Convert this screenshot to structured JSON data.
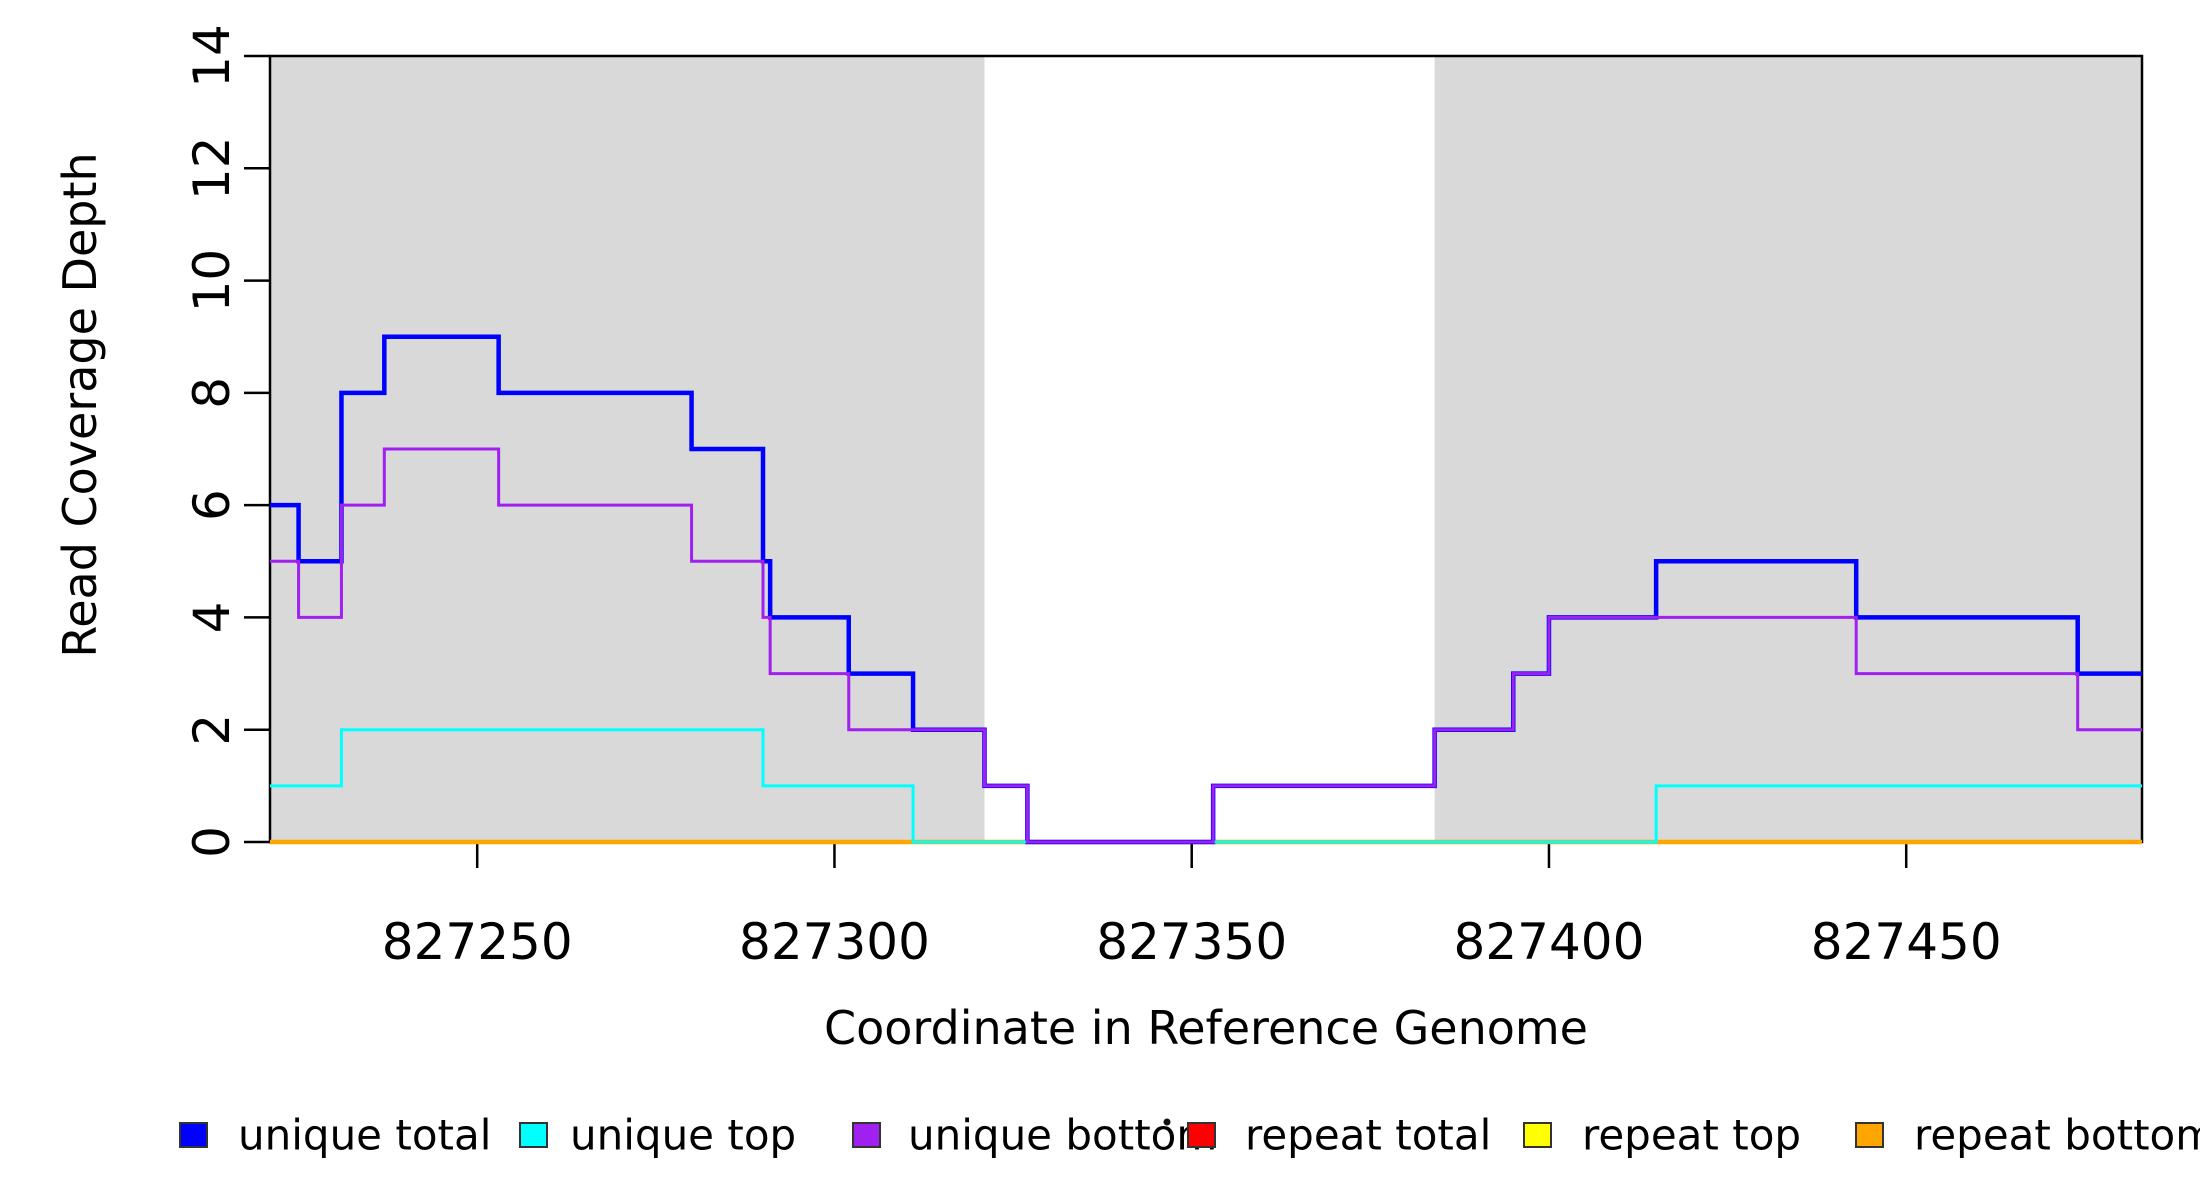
{
  "y_axis": {
    "label": "Read Coverage Depth",
    "ticks": [
      0,
      2,
      4,
      6,
      8,
      10,
      12,
      14
    ]
  },
  "x_axis": {
    "label": "Coordinate in Reference Genome",
    "ticks": [
      827250,
      827300,
      827350,
      827400,
      827450
    ]
  },
  "legend": {
    "items": [
      {
        "label": "unique total",
        "color": "#0000FF"
      },
      {
        "label": "unique top",
        "color": "#00FFFF"
      },
      {
        "label": "unique bottom",
        "color": "#A020F0"
      },
      {
        "label": "repeat total",
        "color": "#FF0000"
      },
      {
        "label": "repeat top",
        "color": "#FFFF00"
      },
      {
        "label": "repeat bottom",
        "color": "#FFA500"
      }
    ],
    "swatch_border_color": "#333333"
  },
  "chart_data": {
    "type": "line",
    "subtype": "step-coverage",
    "title": "",
    "xlabel": "Coordinate in Reference Genome",
    "ylabel": "Read Coverage Depth",
    "xlim": [
      827221,
      827483
    ],
    "ylim": [
      0,
      14
    ],
    "x_ticks": [
      827250,
      827300,
      827350,
      827400,
      827450
    ],
    "y_ticks": [
      0,
      2,
      4,
      6,
      8,
      10,
      12,
      14
    ],
    "grid": false,
    "legend_position": "bottom",
    "shaded_regions": {
      "meaning": "repeat-region-shading",
      "color": "#D9D9D9",
      "ranges": [
        [
          827221,
          827321
        ],
        [
          827384,
          827483
        ]
      ]
    },
    "x_end": 827483,
    "series": [
      {
        "name": "unique total",
        "color": "#0000FF",
        "width": 4.5,
        "breakpoints": [
          [
            827221,
            6
          ],
          [
            827225,
            5
          ],
          [
            827231,
            8
          ],
          [
            827237,
            9
          ],
          [
            827253,
            8
          ],
          [
            827280,
            7
          ],
          [
            827290,
            5
          ],
          [
            827291,
            4
          ],
          [
            827302,
            3
          ],
          [
            827311,
            2
          ],
          [
            827321,
            1
          ],
          [
            827327,
            0
          ],
          [
            827353,
            1
          ],
          [
            827384,
            2
          ],
          [
            827395,
            3
          ],
          [
            827400,
            4
          ],
          [
            827415,
            5
          ],
          [
            827443,
            4
          ],
          [
            827474,
            3
          ]
        ]
      },
      {
        "name": "unique top",
        "color": "#00FFFF",
        "width": 3,
        "breakpoints": [
          [
            827221,
            1
          ],
          [
            827231,
            2
          ],
          [
            827290,
            1
          ],
          [
            827311,
            0
          ],
          [
            827415,
            1
          ]
        ]
      },
      {
        "name": "unique bottom",
        "color": "#A020F0",
        "width": 3,
        "breakpoints": [
          [
            827221,
            5
          ],
          [
            827225,
            4
          ],
          [
            827231,
            6
          ],
          [
            827237,
            7
          ],
          [
            827253,
            6
          ],
          [
            827280,
            5
          ],
          [
            827290,
            4
          ],
          [
            827291,
            3
          ],
          [
            827302,
            2
          ],
          [
            827321,
            1
          ],
          [
            827327,
            0
          ],
          [
            827353,
            1
          ],
          [
            827384,
            2
          ],
          [
            827395,
            3
          ],
          [
            827400,
            4
          ],
          [
            827443,
            3
          ],
          [
            827474,
            2
          ]
        ]
      },
      {
        "name": "repeat total",
        "color": "#FF0000",
        "width": 3,
        "breakpoints": [
          [
            827221,
            0
          ]
        ]
      },
      {
        "name": "repeat top",
        "color": "#FFFF00",
        "width": 3.5,
        "breakpoints": [
          [
            827221,
            0
          ]
        ]
      },
      {
        "name": "repeat bottom",
        "color": "#FFA500",
        "width": 4.5,
        "breakpoints": [
          [
            827221,
            0
          ]
        ]
      }
    ]
  }
}
